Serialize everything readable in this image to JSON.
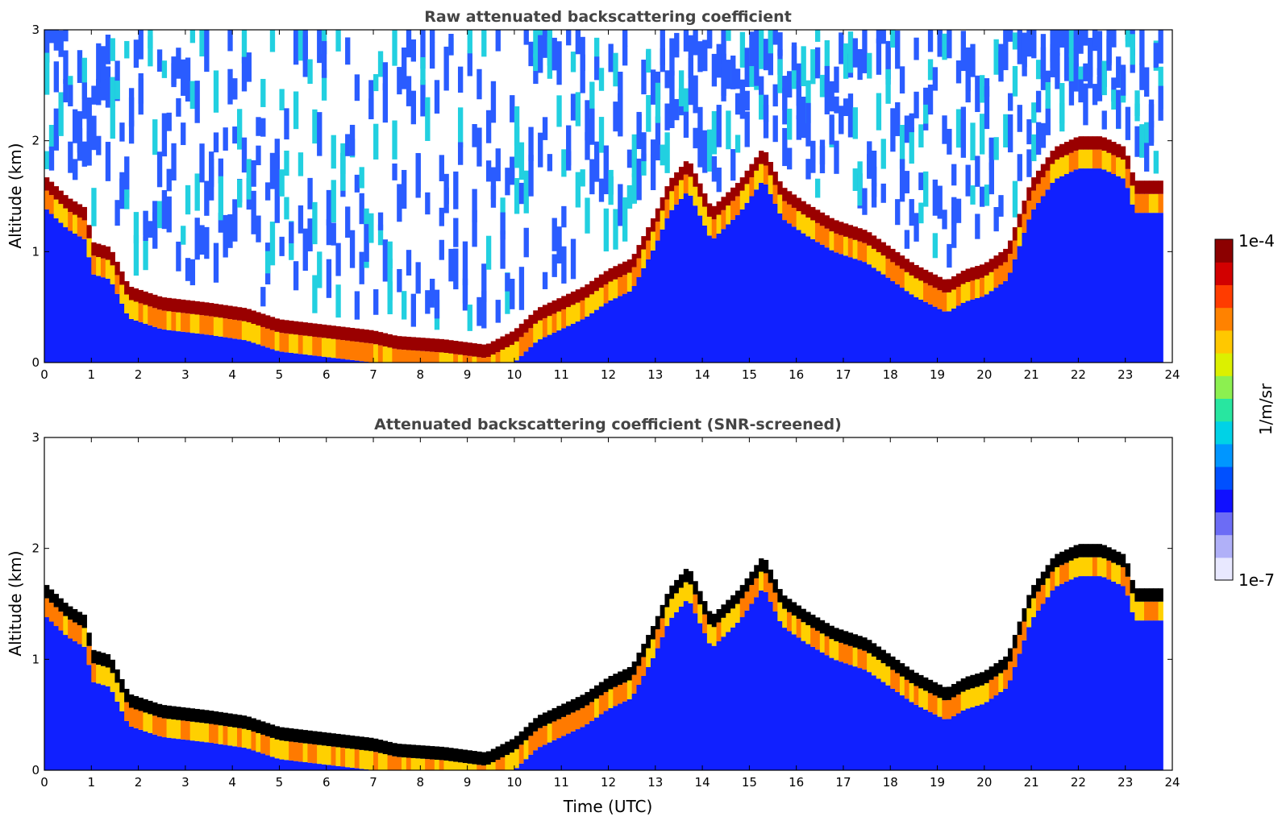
{
  "chart_data": [
    {
      "type": "heatmap",
      "title": "Raw attenuated backscattering coefficient",
      "xlabel": "",
      "ylabel": "Altitude (km)",
      "xlim": [
        0,
        24
      ],
      "ylim": [
        0,
        3
      ],
      "x_ticks": [
        "0",
        "1",
        "2",
        "3",
        "4",
        "5",
        "6",
        "7",
        "8",
        "9",
        "10",
        "11",
        "12",
        "13",
        "14",
        "15",
        "16",
        "17",
        "18",
        "19",
        "20",
        "21",
        "22",
        "23",
        "24"
      ],
      "y_ticks": [
        "0",
        "1",
        "2",
        "3"
      ],
      "layer_top_km": [
        [
          0,
          1.65
        ],
        [
          0.5,
          1.45
        ],
        [
          0.9,
          1.35
        ],
        [
          1.0,
          1.05
        ],
        [
          1.4,
          1.0
        ],
        [
          1.8,
          0.65
        ],
        [
          2.5,
          0.55
        ],
        [
          3.5,
          0.5
        ],
        [
          4.3,
          0.45
        ],
        [
          5,
          0.35
        ],
        [
          6,
          0.3
        ],
        [
          7,
          0.25
        ],
        [
          7.5,
          0.2
        ],
        [
          8.5,
          0.17
        ],
        [
          9.4,
          0.12
        ],
        [
          10,
          0.25
        ],
        [
          10.5,
          0.45
        ],
        [
          11,
          0.55
        ],
        [
          11.5,
          0.65
        ],
        [
          12,
          0.8
        ],
        [
          12.5,
          0.9
        ],
        [
          13,
          1.3
        ],
        [
          13.3,
          1.6
        ],
        [
          13.7,
          1.8
        ],
        [
          14.2,
          1.35
        ],
        [
          14.8,
          1.6
        ],
        [
          15.3,
          1.9
        ],
        [
          15.7,
          1.55
        ],
        [
          16.2,
          1.4
        ],
        [
          16.8,
          1.25
        ],
        [
          17.5,
          1.15
        ],
        [
          18,
          1.0
        ],
        [
          18.5,
          0.85
        ],
        [
          19.2,
          0.7
        ],
        [
          19.6,
          0.8
        ],
        [
          20,
          0.85
        ],
        [
          20.5,
          1.0
        ],
        [
          21,
          1.6
        ],
        [
          21.5,
          1.9
        ],
        [
          22,
          2.0
        ],
        [
          22.5,
          2.0
        ],
        [
          23,
          1.9
        ],
        [
          23.2,
          1.6
        ]
      ],
      "colorscale": {
        "min_label": "1e-7",
        "max_label": "1e-4",
        "unit": "1/m/sr"
      }
    },
    {
      "type": "heatmap",
      "title": "Attenuated backscattering coefficient (SNR-screened)",
      "xlabel": "Time (UTC)",
      "ylabel": "Altitude (km)",
      "xlim": [
        0,
        24
      ],
      "ylim": [
        0,
        3
      ],
      "x_ticks": [
        "0",
        "1",
        "2",
        "3",
        "4",
        "5",
        "6",
        "7",
        "8",
        "9",
        "10",
        "11",
        "12",
        "13",
        "14",
        "15",
        "16",
        "17",
        "18",
        "19",
        "20",
        "21",
        "22",
        "23",
        "24"
      ],
      "y_ticks": [
        "0",
        "1",
        "2",
        "3"
      ],
      "layer_top_km": [
        [
          0,
          1.65
        ],
        [
          0.5,
          1.45
        ],
        [
          0.9,
          1.35
        ],
        [
          1.0,
          1.05
        ],
        [
          1.4,
          1.0
        ],
        [
          1.8,
          0.65
        ],
        [
          2.5,
          0.55
        ],
        [
          3.5,
          0.5
        ],
        [
          4.3,
          0.45
        ],
        [
          5,
          0.35
        ],
        [
          6,
          0.3
        ],
        [
          7,
          0.25
        ],
        [
          7.5,
          0.2
        ],
        [
          8.5,
          0.17
        ],
        [
          9.4,
          0.12
        ],
        [
          10,
          0.25
        ],
        [
          10.5,
          0.45
        ],
        [
          11,
          0.55
        ],
        [
          11.5,
          0.65
        ],
        [
          12,
          0.8
        ],
        [
          12.5,
          0.9
        ],
        [
          13,
          1.3
        ],
        [
          13.3,
          1.6
        ],
        [
          13.7,
          1.8
        ],
        [
          14.2,
          1.35
        ],
        [
          14.8,
          1.6
        ],
        [
          15.3,
          1.9
        ],
        [
          15.7,
          1.55
        ],
        [
          16.2,
          1.4
        ],
        [
          16.8,
          1.25
        ],
        [
          17.5,
          1.15
        ],
        [
          18,
          1.0
        ],
        [
          18.5,
          0.85
        ],
        [
          19.2,
          0.7
        ],
        [
          19.6,
          0.8
        ],
        [
          20,
          0.85
        ],
        [
          20.5,
          1.0
        ],
        [
          21,
          1.6
        ],
        [
          21.5,
          1.9
        ],
        [
          22,
          2.0
        ],
        [
          22.5,
          2.0
        ],
        [
          23,
          1.9
        ],
        [
          23.2,
          1.6
        ]
      ],
      "colorscale": {
        "min_label": "1e-7",
        "max_label": "1e-4",
        "unit": "1/m/sr"
      }
    }
  ],
  "colorbar": {
    "max_label": "1e-4",
    "min_label": "1e-7",
    "unit_label": "1/m/sr",
    "colors": [
      "#e8e8ff",
      "#b0b0f8",
      "#6c6cf5",
      "#1010ff",
      "#0050ff",
      "#0096ff",
      "#00d2e6",
      "#28e6a0",
      "#8cf050",
      "#dcf000",
      "#ffc800",
      "#ff8200",
      "#ff3c00",
      "#d20000",
      "#8c0000"
    ]
  }
}
